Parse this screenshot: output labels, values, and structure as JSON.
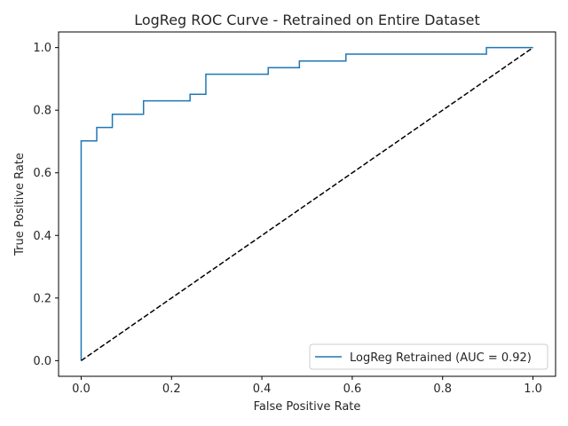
{
  "chart_data": {
    "type": "line",
    "title": "LogReg ROC Curve - Retrained on Entire Dataset",
    "xlabel": "False Positive Rate",
    "ylabel": "True Positive Rate",
    "xlim": [
      -0.05,
      1.05
    ],
    "ylim": [
      -0.05,
      1.05
    ],
    "xticks": [
      0.0,
      0.2,
      0.4,
      0.6,
      0.8,
      1.0
    ],
    "yticks": [
      0.0,
      0.2,
      0.4,
      0.6,
      0.8,
      1.0
    ],
    "xtick_labels": [
      "0.0",
      "0.2",
      "0.4",
      "0.6",
      "0.8",
      "1.0"
    ],
    "ytick_labels": [
      "0.0",
      "0.2",
      "0.4",
      "0.6",
      "0.8",
      "1.0"
    ],
    "grid": false,
    "legend_position": "lower-right",
    "series": [
      {
        "name": "LogReg Retrained (AUC = 0.92)",
        "color": "#1f77b4",
        "style": "solid",
        "step": true,
        "x": [
          0.0,
          0.0,
          0.0345,
          0.0345,
          0.069,
          0.069,
          0.138,
          0.138,
          0.241,
          0.241,
          0.276,
          0.276,
          0.414,
          0.414,
          0.483,
          0.483,
          0.586,
          0.586,
          0.897,
          0.897,
          1.0
        ],
        "y": [
          0.0,
          0.702,
          0.702,
          0.745,
          0.745,
          0.787,
          0.787,
          0.83,
          0.83,
          0.851,
          0.851,
          0.915,
          0.915,
          0.936,
          0.936,
          0.957,
          0.957,
          0.979,
          0.979,
          1.0,
          1.0
        ]
      },
      {
        "name": "",
        "color": "#000000",
        "style": "dashed",
        "x": [
          0.0,
          1.0
        ],
        "y": [
          0.0,
          1.0
        ]
      }
    ]
  }
}
